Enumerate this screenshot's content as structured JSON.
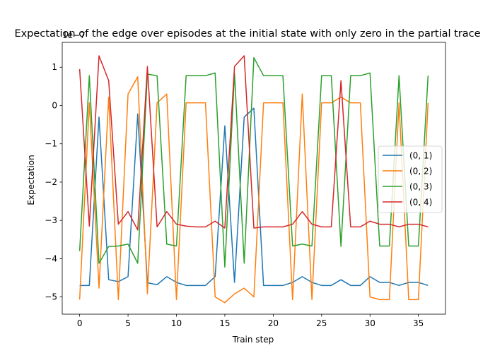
{
  "chart_data": {
    "type": "line",
    "title": "Expectation of the edge over episodes at the initial state with only zero in the partial trace",
    "xlabel": "Train step",
    "ylabel": "Expectation",
    "offset_label": "1e−7",
    "xlim": [
      -1.8,
      37.8
    ],
    "ylim": [
      -5.45,
      1.65
    ],
    "xticks": [
      0,
      5,
      10,
      15,
      20,
      25,
      30,
      35
    ],
    "yticks": [
      -5,
      -4,
      -3,
      -2,
      -1,
      0,
      1
    ],
    "ytick_labels": [
      "−5",
      "−4",
      "−3",
      "−2",
      "−1",
      "0",
      "1"
    ],
    "grid": false,
    "legend_position": "center-right",
    "x": [
      0,
      1,
      2,
      3,
      4,
      5,
      6,
      7,
      8,
      9,
      10,
      11,
      12,
      13,
      14,
      15,
      16,
      17,
      18,
      19,
      20,
      21,
      22,
      23,
      24,
      25,
      26,
      27,
      28,
      29,
      30,
      31,
      32,
      33,
      34,
      35,
      36
    ],
    "series": [
      {
        "name": "(0, 1)",
        "color": "#1f77b4",
        "values": [
          -4.7,
          -4.7,
          -0.3,
          -4.55,
          -4.6,
          -4.47,
          -0.22,
          -4.63,
          -4.68,
          -4.47,
          -4.62,
          -4.7,
          -4.7,
          -4.7,
          -4.47,
          -0.53,
          -4.62,
          -0.3,
          -0.07,
          -4.7,
          -4.7,
          -4.7,
          -4.62,
          -4.47,
          -4.62,
          -4.7,
          -4.7,
          -4.55,
          -4.7,
          -4.7,
          -4.47,
          -4.62,
          -4.62,
          -4.7,
          -4.62,
          -4.62,
          -4.7
        ]
      },
      {
        "name": "(0, 2)",
        "color": "#ff7f0e",
        "values": [
          -5.07,
          0.07,
          -4.77,
          0.22,
          -5.07,
          0.3,
          0.75,
          -4.92,
          0.07,
          0.3,
          -5.07,
          0.07,
          0.07,
          0.07,
          -5.0,
          -5.15,
          -4.92,
          -4.77,
          -5.0,
          0.07,
          0.07,
          0.07,
          -5.07,
          0.3,
          -5.07,
          0.07,
          0.07,
          0.22,
          0.07,
          0.07,
          -5.0,
          -5.07,
          -5.07,
          0.07,
          -5.07,
          -5.07,
          0.07
        ]
      },
      {
        "name": "(0, 3)",
        "color": "#2ca02c",
        "values": [
          -3.8,
          0.78,
          -4.12,
          -3.68,
          -3.67,
          -3.62,
          -4.12,
          0.82,
          0.78,
          -3.62,
          -3.67,
          0.78,
          0.78,
          0.78,
          0.85,
          -4.22,
          0.85,
          -4.12,
          1.25,
          0.78,
          0.78,
          0.78,
          -3.67,
          -3.62,
          -3.67,
          0.78,
          0.78,
          -3.68,
          0.78,
          0.78,
          0.85,
          -3.67,
          -3.67,
          0.78,
          -3.67,
          -3.67,
          0.78
        ]
      },
      {
        "name": "(0, 4)",
        "color": "#d62728",
        "values": [
          0.95,
          -3.15,
          1.3,
          0.65,
          -3.1,
          -2.77,
          -3.25,
          1.02,
          -3.17,
          -2.77,
          -3.1,
          -3.15,
          -3.17,
          -3.17,
          -3.02,
          -3.2,
          1.02,
          1.3,
          -3.2,
          -3.17,
          -3.17,
          -3.17,
          -3.1,
          -2.77,
          -3.1,
          -3.17,
          -3.17,
          0.65,
          -3.17,
          -3.17,
          -3.02,
          -3.1,
          -3.1,
          -3.17,
          -3.1,
          -3.1,
          -3.17
        ]
      }
    ]
  }
}
